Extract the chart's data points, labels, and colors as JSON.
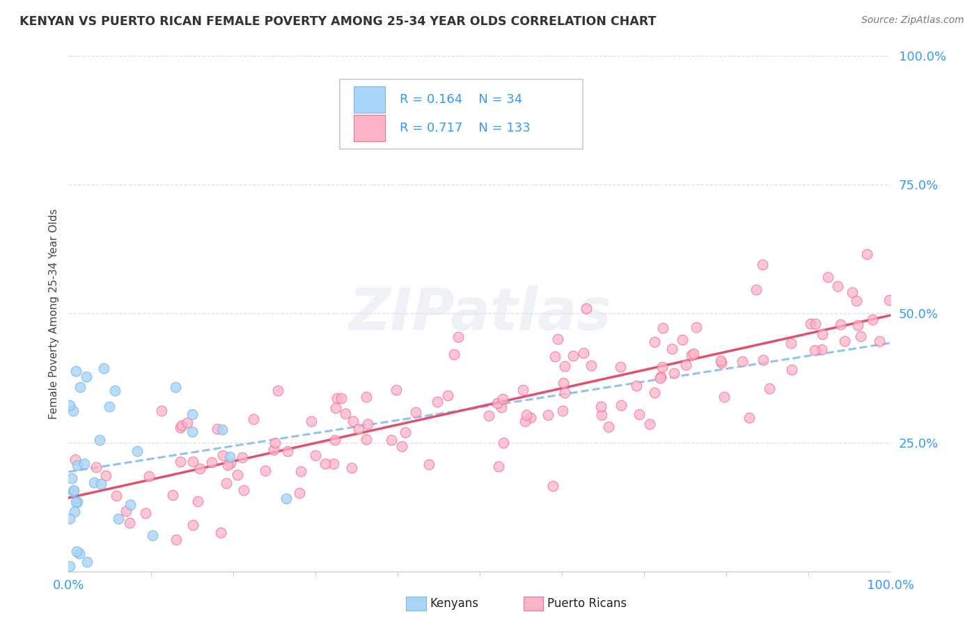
{
  "title": "KENYAN VS PUERTO RICAN FEMALE POVERTY AMONG 25-34 YEAR OLDS CORRELATION CHART",
  "source": "Source: ZipAtlas.com",
  "ylabel": "Female Poverty Among 25-34 Year Olds",
  "xlim": [
    0.0,
    1.0
  ],
  "ylim": [
    0.0,
    1.0
  ],
  "kenyan_color": "#aad4f5",
  "kenyan_edge": "#7ab8e8",
  "pr_color": "#ffb3c8",
  "pr_edge": "#f07090",
  "kenyan_line_color": "#88bbee",
  "pr_line_color": "#e05070",
  "watermark": "ZIPatlas",
  "title_color": "#333333",
  "source_color": "#777777",
  "axis_label_color": "#444444",
  "tick_label_color": "#3399ff",
  "legend_text_color": "#3399ff",
  "background_color": "#ffffff",
  "legend_r_kenyan": "R = 0.164",
  "legend_n_kenyan": "N = 34",
  "legend_r_pr": "R = 0.717",
  "legend_n_pr": "N = 133"
}
